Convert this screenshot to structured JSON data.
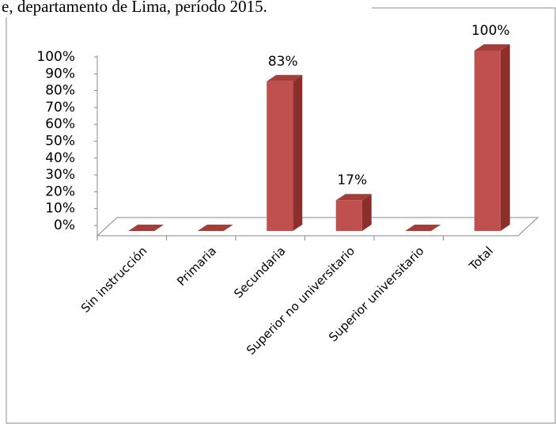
{
  "header": {
    "text": "e, departamento de Lima, período 2015."
  },
  "chart_data": {
    "type": "bar",
    "categories": [
      "Sin instrucción",
      "Primaria",
      "Secundaria",
      "Superior no universitario",
      "Superior universitario",
      "Total"
    ],
    "values": [
      0,
      0,
      83,
      17,
      0,
      100
    ],
    "value_labels": [
      null,
      null,
      "83%",
      "17%",
      null,
      "100%"
    ],
    "color": "#c0504d",
    "ylim": [
      0,
      100
    ],
    "yticks": [
      {
        "value": 0,
        "label": "0%"
      },
      {
        "value": 10,
        "label": "10%"
      },
      {
        "value": 20,
        "label": "20%"
      },
      {
        "value": 30,
        "label": "30%"
      },
      {
        "value": 40,
        "label": "40%"
      },
      {
        "value": 50,
        "label": "50%"
      },
      {
        "value": 60,
        "label": "60%"
      },
      {
        "value": 70,
        "label": "70%"
      },
      {
        "value": 80,
        "label": "80%"
      },
      {
        "value": 90,
        "label": "90%"
      },
      {
        "value": 100,
        "label": "100%"
      }
    ]
  }
}
